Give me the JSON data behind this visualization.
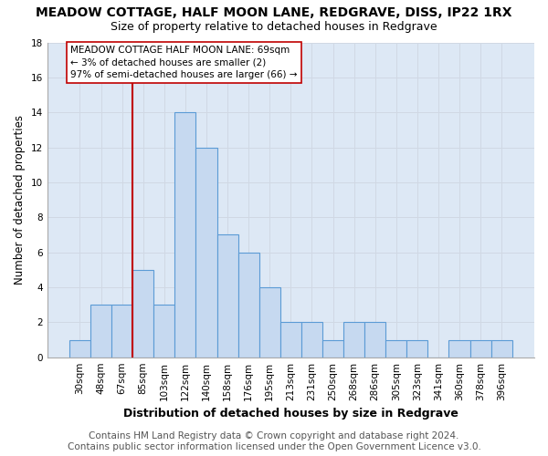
{
  "title": "MEADOW COTTAGE, HALF MOON LANE, REDGRAVE, DISS, IP22 1RX",
  "subtitle": "Size of property relative to detached houses in Redgrave",
  "xlabel": "Distribution of detached houses by size in Redgrave",
  "ylabel": "Number of detached properties",
  "footer_line1": "Contains HM Land Registry data © Crown copyright and database right 2024.",
  "footer_line2": "Contains public sector information licensed under the Open Government Licence v3.0.",
  "categories": [
    "30sqm",
    "48sqm",
    "67sqm",
    "85sqm",
    "103sqm",
    "122sqm",
    "140sqm",
    "158sqm",
    "176sqm",
    "195sqm",
    "213sqm",
    "231sqm",
    "250sqm",
    "268sqm",
    "286sqm",
    "305sqm",
    "323sqm",
    "341sqm",
    "360sqm",
    "378sqm",
    "396sqm"
  ],
  "values": [
    1,
    3,
    3,
    5,
    3,
    14,
    12,
    7,
    6,
    4,
    2,
    2,
    1,
    2,
    2,
    1,
    1,
    0,
    1,
    1,
    1
  ],
  "highlight_index": 2,
  "normal_bar_color": "#c6d9f0",
  "normal_bar_edge": "#5b9bd5",
  "red_line_color": "#c00000",
  "ylim": [
    0,
    18
  ],
  "yticks": [
    0,
    2,
    4,
    6,
    8,
    10,
    12,
    14,
    16,
    18
  ],
  "annotation_text": "MEADOW COTTAGE HALF MOON LANE: 69sqm\n← 3% of detached houses are smaller (2)\n97% of semi-detached houses are larger (66) →",
  "grid_color": "#d0d8e4",
  "bg_color": "#dde8f5",
  "title_fontsize": 10,
  "subtitle_fontsize": 9,
  "xlabel_fontsize": 9,
  "ylabel_fontsize": 8.5,
  "tick_fontsize": 7.5,
  "annotation_fontsize": 7.5,
  "footer_fontsize": 7.5
}
